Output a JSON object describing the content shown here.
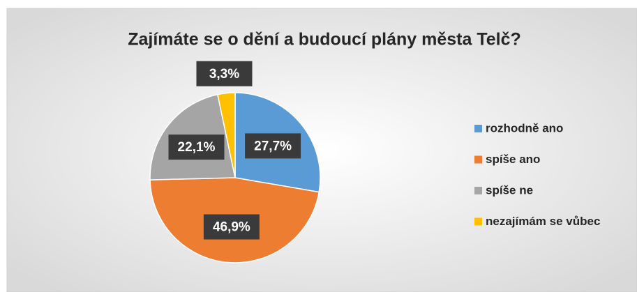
{
  "chart_data": {
    "type": "pie",
    "title": "Zajímáte se o dění a budoucí plány města Telč?",
    "categories": [
      "rozhodně ano",
      "spíše ano",
      "spíše ne",
      "nezajímám se vůbec"
    ],
    "values": [
      27.7,
      46.9,
      22.1,
      3.3
    ],
    "value_labels": [
      "27,7%",
      "46,9%",
      "22,1%",
      "3,3%"
    ],
    "colors": [
      "#5b9bd5",
      "#ed7d31",
      "#a5a5a5",
      "#ffc000"
    ],
    "legend": "right"
  }
}
